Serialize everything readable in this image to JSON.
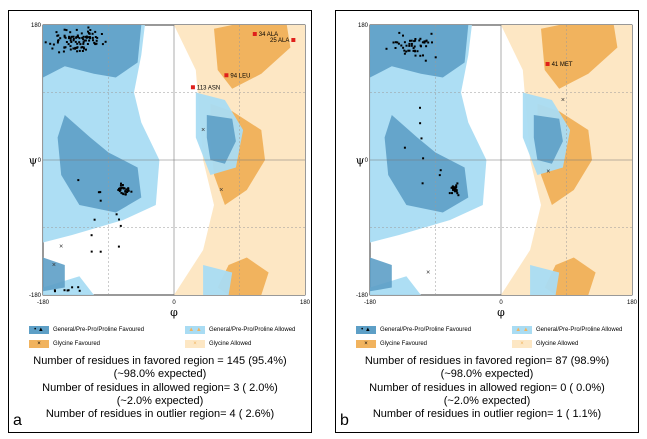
{
  "colors": {
    "general_favoured": "#5d9fc6",
    "general_allowed": "#a9dcf3",
    "glycine_favoured": "#f1b35e",
    "glycine_allowed": "#fde7c4",
    "favoured_point": "#000000",
    "outlier_point": "#e0201b"
  },
  "legend": {
    "general_favoured": "General/Pre-Pro/Proline Favoured",
    "general_allowed": "General/Pre-Pro/Proline Allowed",
    "glycine_favoured": "Glycine Favoured",
    "glycine_allowed": "Glycine Allowed"
  },
  "chart_data": [
    {
      "type": "scatter",
      "panel_label": "a",
      "xlabel": "φ",
      "ylabel": "ψ",
      "xlim": [
        -180,
        180
      ],
      "ylim": [
        -180,
        180
      ],
      "xticks": [
        "-180",
        "0",
        "180"
      ],
      "yticks": [
        "-180",
        "0",
        "180"
      ],
      "outliers": [
        {
          "label": "34 ALA",
          "x": 111,
          "y": 168
        },
        {
          "label": "25 ALA",
          "x": 164,
          "y": 160
        },
        {
          "label": "94 LEU",
          "x": 72,
          "y": 113
        },
        {
          "label": "113 ASN",
          "x": 26,
          "y": 97
        }
      ],
      "stats": [
        "Number of residues in favored region = 145 (95.4%)",
        "(~98.0% expected)",
        "Number of residues in allowed region= 3 ( 2.0%)",
        "(~2.0% expected)",
        "Number of residues in outlier region= 4 ( 2.6%)"
      ]
    },
    {
      "type": "scatter",
      "panel_label": "b",
      "xlabel": "φ",
      "ylabel": "ψ",
      "xlim": [
        -180,
        180
      ],
      "ylim": [
        -180,
        180
      ],
      "xticks": [
        "-180",
        "0",
        "180"
      ],
      "yticks": [
        "-180",
        "0",
        "180"
      ],
      "outliers": [
        {
          "label": "41 MET",
          "x": 64,
          "y": 128
        }
      ],
      "stats": [
        "Number of residues in favored region= 87 (98.9%)",
        "(~98.0% expected)",
        "Number of residues in allowed region= 0 ( 0.0%)",
        "(~2.0% expected)",
        "Number of residues in outlier region= 1 ( 1.1%)"
      ]
    }
  ]
}
